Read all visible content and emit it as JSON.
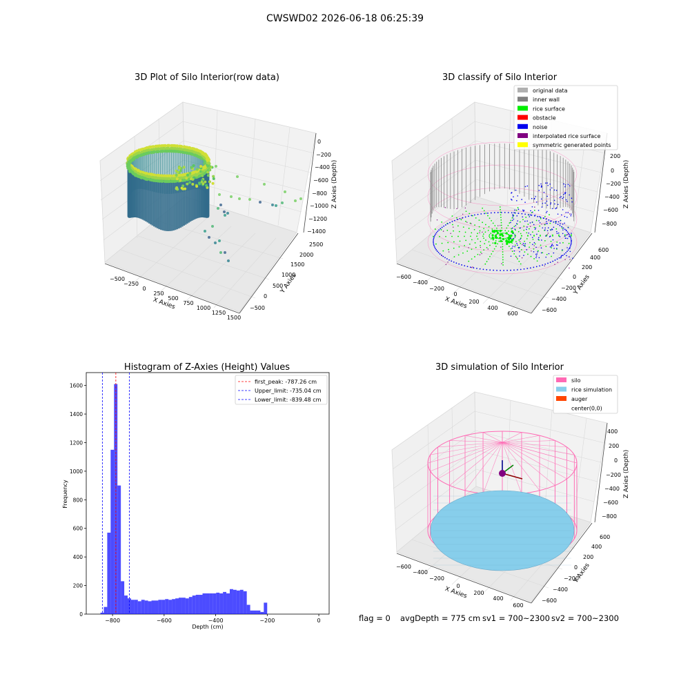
{
  "suptitle": "CWSWD02 2026-06-18 06:25:39",
  "footer": {
    "flag": "flag = 0",
    "avg": "avgDepth = 775 cm",
    "sv1": "sv1 = 700~2300",
    "sv2": "sv2 = 700~2300"
  },
  "panels": {
    "raw": {
      "title": "3D Plot of Silo Interior(row data)",
      "xlabel": "X Axies",
      "ylabel": "Y Axies",
      "zlabel": "Z Axies (Depth)",
      "xticks": [
        "−500",
        "−250",
        "0",
        "250",
        "500",
        "750",
        "1000",
        "1250",
        "1500"
      ],
      "yticks": [
        "−500",
        "0",
        "500",
        "1000",
        "1500",
        "2000",
        "2500"
      ],
      "zticks": [
        "0",
        "−200",
        "−400",
        "−600",
        "−800",
        "−1000",
        "−1200",
        "−1400"
      ]
    },
    "classify": {
      "title": "3D classify of Silo Interior",
      "xlabel": "X Axies",
      "ylabel": "Y Axies",
      "zlabel": "Z Axies (Depth)",
      "xticks": [
        "−600",
        "−400",
        "−200",
        "0",
        "200",
        "400",
        "600"
      ],
      "yticks": [
        "−600",
        "−400",
        "−200",
        "0",
        "200",
        "400",
        "600"
      ],
      "zticks": [
        "200",
        "0",
        "−200",
        "−400",
        "−600",
        "−800"
      ],
      "legend": [
        {
          "label": "original data",
          "color": "#b0b0b0"
        },
        {
          "label": "inner wall",
          "color": "#808080"
        },
        {
          "label": "rice surface",
          "color": "#00ee00"
        },
        {
          "label": "obstacle",
          "color": "#ff0000"
        },
        {
          "label": "noise",
          "color": "#0000ee"
        },
        {
          "label": "interpolated rice surface",
          "color": "#800080"
        },
        {
          "label": "symmetric generated points",
          "color": "#ffff00"
        }
      ]
    },
    "simulation": {
      "title": "3D simulation of Silo Interior",
      "xlabel": "X Axies",
      "ylabel": "Y Axies",
      "zlabel": "Z Axies (Depth)",
      "xticks": [
        "−600",
        "−400",
        "−200",
        "0",
        "200",
        "400",
        "600"
      ],
      "yticks": [
        "−600",
        "−400",
        "−200",
        "0",
        "200",
        "400",
        "600"
      ],
      "zticks": [
        "400",
        "200",
        "0",
        "−200",
        "−400",
        "−600",
        "−800"
      ],
      "legend": [
        {
          "label": "silo",
          "color": "#ff69b4"
        },
        {
          "label": "rice simulation",
          "color": "#87ceeb"
        },
        {
          "label": "auger",
          "color": "#ff4500"
        },
        {
          "label": "center(0,0)",
          "color": "#ffffff"
        }
      ]
    }
  },
  "chart_data": {
    "type": "bar",
    "title": "Histogram of Z-Axies (Height) Values",
    "xlabel": "Depth (cm)",
    "ylabel": "Frequency",
    "xlim": [
      -902,
      40
    ],
    "ylim": [
      0,
      1690
    ],
    "xticks": [
      -800,
      -600,
      -400,
      -200,
      0
    ],
    "yticks": [
      0,
      200,
      400,
      600,
      800,
      1000,
      1200,
      1400,
      1600
    ],
    "bin_start": -847,
    "bin_width": 13.2,
    "values": [
      10,
      50,
      570,
      1150,
      1610,
      900,
      230,
      130,
      110,
      100,
      100,
      90,
      100,
      95,
      90,
      95,
      95,
      100,
      100,
      105,
      100,
      105,
      110,
      115,
      115,
      110,
      120,
      130,
      135,
      135,
      145,
      145,
      145,
      145,
      150,
      145,
      155,
      145,
      175,
      170,
      165,
      170,
      160,
      65,
      25,
      25,
      25,
      15,
      80
    ],
    "bar_color": "#0000ff",
    "vlines": [
      {
        "label": "first_peak: -787.26 cm",
        "x": -787.26,
        "color": "#ff0000"
      },
      {
        "label": "Upper_limit: -735.04 cm",
        "x": -735.04,
        "color": "#0000ff"
      },
      {
        "label": "Lower_limit: -839.48 cm",
        "x": -839.48,
        "color": "#0000ff"
      }
    ],
    "legend_position": "upper right"
  }
}
